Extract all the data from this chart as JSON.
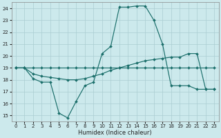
{
  "xlabel": "Humidex (Indice chaleur)",
  "xlim": [
    -0.5,
    23.5
  ],
  "ylim": [
    14.5,
    24.5
  ],
  "yticks": [
    15,
    16,
    17,
    18,
    19,
    20,
    21,
    22,
    23,
    24
  ],
  "xticks": [
    0,
    1,
    2,
    3,
    4,
    5,
    6,
    7,
    8,
    9,
    10,
    11,
    12,
    13,
    14,
    15,
    16,
    17,
    18,
    19,
    20,
    21,
    22,
    23
  ],
  "background_color": "#cce9ec",
  "grid_color": "#aacdd1",
  "line_color": "#1a6e6a",
  "line_peak_x": [
    0,
    1,
    2,
    3,
    4,
    5,
    6,
    7,
    8,
    9,
    10,
    11,
    12,
    13,
    14,
    15,
    16,
    17,
    18,
    19,
    20,
    21,
    22,
    23
  ],
  "line_peak_y": [
    19,
    19,
    18.1,
    17.8,
    17.8,
    15.2,
    14.8,
    16.2,
    17.5,
    17.8,
    20.2,
    20.8,
    24.1,
    24.1,
    24.2,
    24.2,
    23.0,
    21.0,
    17.5,
    17.5,
    17.5,
    17.2,
    17.2,
    17.2
  ],
  "line_rise_x": [
    0,
    1,
    2,
    3,
    4,
    5,
    6,
    7,
    8,
    9,
    10,
    11,
    12,
    13,
    14,
    15,
    16,
    17,
    18,
    19,
    20,
    21,
    22,
    23
  ],
  "line_rise_y": [
    19,
    19,
    18.5,
    18.3,
    18.2,
    18.1,
    18.0,
    18.0,
    18.1,
    18.3,
    18.5,
    18.8,
    19.0,
    19.2,
    19.4,
    19.6,
    19.7,
    19.8,
    19.9,
    19.9,
    20.2,
    20.2,
    17.2,
    17.2
  ],
  "line_flat_x": [
    0,
    1,
    2,
    3,
    4,
    5,
    6,
    7,
    8,
    9,
    10,
    11,
    12,
    13,
    14,
    15,
    16,
    17,
    18,
    19,
    20,
    21,
    22,
    23
  ],
  "line_flat_y": [
    19,
    19,
    19,
    19,
    19,
    19,
    19,
    19,
    19,
    19,
    19,
    19,
    19,
    19,
    19,
    19,
    19,
    19,
    19,
    19,
    19,
    19,
    19,
    19
  ]
}
